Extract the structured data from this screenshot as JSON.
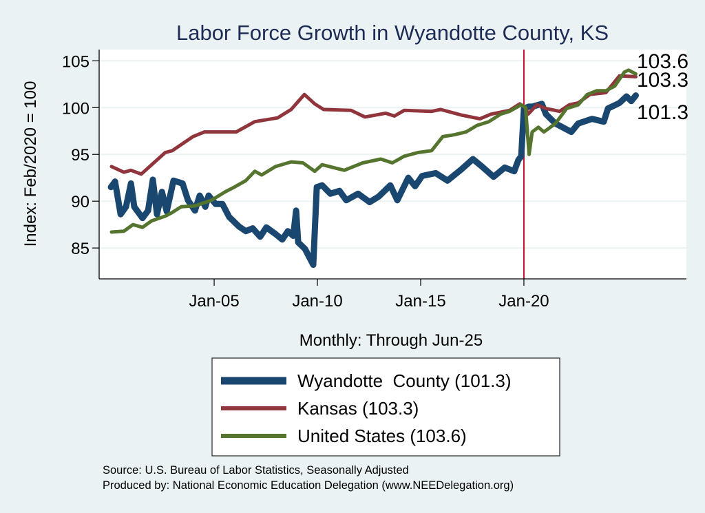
{
  "chart_data": {
    "type": "line",
    "title": "Labor Force Growth in Wyandotte  County, KS",
    "xlabel": "Monthly: Through Jun-25",
    "ylabel": "Index: Feb/2020 = 100",
    "xlim": [
      1999.43,
      2027.87
    ],
    "ylim": [
      81.7,
      106.2
    ],
    "x_ticks": [
      2005,
      2010,
      2015,
      2020
    ],
    "x_tick_labels": [
      "Jan-05",
      "Jan-10",
      "Jan-15",
      "Jan-20"
    ],
    "y_ticks": [
      85,
      90,
      95,
      100,
      105
    ],
    "y_tick_labels": [
      "85",
      "90",
      "95",
      "100",
      "105"
    ],
    "grid": true,
    "reference_line_x": 2020.0,
    "reference_line_color": "#c8102e",
    "legend_placement": "bottom",
    "series": [
      {
        "name": "Wyandotte  County (101.3)",
        "end_label": "101.3",
        "color": "#1a476f",
        "x": [
          2000.0,
          2000.2,
          2000.47,
          2000.73,
          2000.97,
          2001.13,
          2001.53,
          2001.8,
          2002.03,
          2002.23,
          2002.47,
          2002.7,
          2003.03,
          2003.47,
          2003.73,
          2004.07,
          2004.3,
          2004.57,
          2004.73,
          2005.07,
          2005.4,
          2005.73,
          2006.2,
          2006.53,
          2006.87,
          2007.23,
          2007.53,
          2007.97,
          2008.3,
          2008.57,
          2008.83,
          2008.97,
          2009.07,
          2009.4,
          2009.8,
          2009.97,
          2010.23,
          2010.63,
          2011.07,
          2011.4,
          2011.97,
          2012.53,
          2012.97,
          2013.53,
          2013.87,
          2014.4,
          2014.73,
          2015.07,
          2015.73,
          2016.3,
          2016.97,
          2017.53,
          2017.97,
          2018.53,
          2019.07,
          2019.53,
          2019.73,
          2019.87,
          2020.0,
          2020.23,
          2020.4,
          2020.87,
          2021.07,
          2021.53,
          2022.3,
          2022.63,
          2023.3,
          2023.87,
          2024.07,
          2024.63,
          2024.97,
          2025.2,
          2025.42
        ],
        "y": [
          91.5,
          92.1,
          88.6,
          89.4,
          91.9,
          89.4,
          88.2,
          89.0,
          92.3,
          88.6,
          91.0,
          88.9,
          92.2,
          91.9,
          90.1,
          89.0,
          90.6,
          89.4,
          90.6,
          89.7,
          89.7,
          88.3,
          87.3,
          86.8,
          87.1,
          86.2,
          87.2,
          86.5,
          85.9,
          86.8,
          86.3,
          89.0,
          85.6,
          84.9,
          83.2,
          91.5,
          91.7,
          90.8,
          91.1,
          90.1,
          90.8,
          89.9,
          90.5,
          91.7,
          90.1,
          92.5,
          91.6,
          92.7,
          93.0,
          92.2,
          93.4,
          94.5,
          93.7,
          92.6,
          93.6,
          93.2,
          94.4,
          94.8,
          99.9,
          100.1,
          100.1,
          100.4,
          99.3,
          98.3,
          97.4,
          98.3,
          98.8,
          98.5,
          99.9,
          100.5,
          101.2,
          100.7,
          101.3
        ]
      },
      {
        "name": "Kansas (103.3)",
        "end_label": "103.3",
        "color": "#90353b",
        "x": [
          2000.03,
          2000.63,
          2000.97,
          2001.47,
          2002.63,
          2002.97,
          2003.97,
          2004.53,
          2006.07,
          2006.97,
          2008.07,
          2008.73,
          2009.37,
          2009.87,
          2010.3,
          2011.63,
          2012.3,
          2013.3,
          2013.73,
          2014.2,
          2015.53,
          2015.97,
          2016.97,
          2017.87,
          2018.4,
          2019.3,
          2019.8,
          2020.08,
          2020.2,
          2020.63,
          2021.07,
          2021.73,
          2022.2,
          2022.63,
          2023.2,
          2023.97,
          2024.63,
          2025.42
        ],
        "y": [
          93.7,
          93.1,
          93.3,
          92.9,
          95.2,
          95.4,
          96.9,
          97.4,
          97.4,
          98.5,
          98.9,
          99.8,
          101.4,
          100.4,
          99.8,
          99.7,
          99.0,
          99.4,
          99.1,
          99.7,
          99.6,
          99.8,
          99.2,
          98.8,
          99.3,
          99.7,
          100.4,
          100.0,
          99.3,
          100.3,
          99.9,
          99.6,
          100.3,
          100.5,
          101.4,
          101.6,
          103.4,
          103.3
        ]
      },
      {
        "name": "United States (103.6)",
        "end_label": "103.6",
        "color": "#55752f",
        "x": [
          2000.03,
          2000.63,
          2001.07,
          2001.53,
          2001.97,
          2002.63,
          2002.97,
          2003.4,
          2004.07,
          2004.87,
          2005.53,
          2005.97,
          2006.53,
          2006.97,
          2007.3,
          2007.97,
          2008.73,
          2009.3,
          2009.87,
          2010.23,
          2011.3,
          2012.2,
          2013.07,
          2013.63,
          2014.2,
          2014.87,
          2015.53,
          2016.07,
          2016.63,
          2017.2,
          2017.73,
          2018.3,
          2018.87,
          2019.3,
          2019.87,
          2020.08,
          2020.25,
          2020.4,
          2020.7,
          2020.97,
          2021.53,
          2022.07,
          2022.63,
          2023.07,
          2023.53,
          2023.97,
          2024.4,
          2024.87,
          2025.07,
          2025.42
        ],
        "y": [
          86.7,
          86.8,
          87.5,
          87.2,
          87.9,
          88.4,
          88.8,
          89.4,
          89.5,
          90.1,
          91.0,
          91.5,
          92.2,
          93.2,
          92.8,
          93.7,
          94.2,
          94.1,
          93.2,
          93.9,
          93.3,
          94.1,
          94.5,
          94.1,
          94.8,
          95.2,
          95.4,
          96.9,
          97.1,
          97.4,
          98.1,
          98.5,
          99.3,
          99.6,
          100.3,
          100.0,
          95.0,
          97.4,
          97.9,
          97.4,
          98.3,
          99.9,
          100.3,
          101.4,
          101.8,
          101.8,
          102.3,
          103.8,
          104.0,
          103.6
        ]
      }
    ],
    "notes": [
      "Source: U.S. Bureau of Labor Statistics, Seasonally Adjusted",
      "Produced by: National Economic Education Delegation (www.NEEDelegation.org)"
    ]
  }
}
